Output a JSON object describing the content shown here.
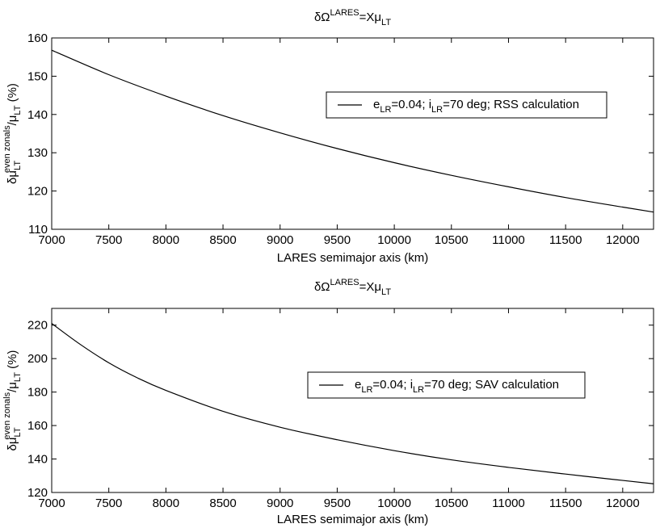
{
  "chart_data": [
    {
      "type": "line",
      "title": {
        "base": "δΩ",
        "sup": "LARES",
        "mid": "=Xμ",
        "sub": "LT"
      },
      "xlabel": "LARES semimajor axis (km)",
      "ylabel": {
        "p1": "δμ",
        "p1_sub": "LT",
        "p1_sup": "even zonals",
        "p2": "/μ",
        "p2_sub": "LT",
        "p3": " (%)"
      },
      "xlim": [
        7000,
        12270
      ],
      "ylim": [
        110,
        160
      ],
      "xticks": [
        7000,
        7500,
        8000,
        8500,
        9000,
        9500,
        10000,
        10500,
        11000,
        11500,
        12000
      ],
      "yticks": [
        110,
        120,
        130,
        140,
        150,
        160
      ],
      "legend": {
        "pre": "e",
        "sub1": "LR",
        "mid1": "=0.04; i",
        "sub2": "LR",
        "post": "=70 deg; RSS calculation"
      },
      "legend_position": "upper-right",
      "grid": false,
      "series": [
        {
          "x": [
            7000,
            7500,
            8000,
            8500,
            9000,
            9500,
            10000,
            10500,
            11000,
            11500,
            12000,
            12270
          ],
          "y": [
            156.8,
            150.4,
            144.8,
            139.7,
            135.2,
            131.1,
            127.4,
            124.1,
            121.1,
            118.3,
            115.8,
            114.5
          ]
        }
      ]
    },
    {
      "type": "line",
      "title": {
        "base": "δΩ",
        "sup": "LARES",
        "mid": "=Xμ",
        "sub": "LT"
      },
      "xlabel": "LARES semimajor axis (km)",
      "ylabel": {
        "p1": "δμ",
        "p1_sub": "LT",
        "p1_sup": "even zonals",
        "p2": "/μ",
        "p2_sub": "LT",
        "p3": " (%)"
      },
      "xlim": [
        7000,
        12270
      ],
      "ylim": [
        120,
        230
      ],
      "xticks": [
        7000,
        7500,
        8000,
        8500,
        9000,
        9500,
        10000,
        10500,
        11000,
        11500,
        12000
      ],
      "yticks": [
        120,
        140,
        160,
        180,
        200,
        220
      ],
      "legend": {
        "pre": "e",
        "sub1": "LR",
        "mid1": "=0.04; i",
        "sub2": "LR",
        "post": "=70 deg; SAV calculation"
      },
      "legend_position": "right",
      "grid": false,
      "series": [
        {
          "x": [
            7000,
            7250,
            7500,
            7750,
            8000,
            8500,
            9000,
            9500,
            10000,
            10500,
            11000,
            11500,
            12000,
            12270
          ],
          "y": [
            221.0,
            208.5,
            197.5,
            188.5,
            181.0,
            168.5,
            159.0,
            151.5,
            145.0,
            139.5,
            135.0,
            131.0,
            127.2,
            125.2
          ]
        }
      ]
    }
  ]
}
